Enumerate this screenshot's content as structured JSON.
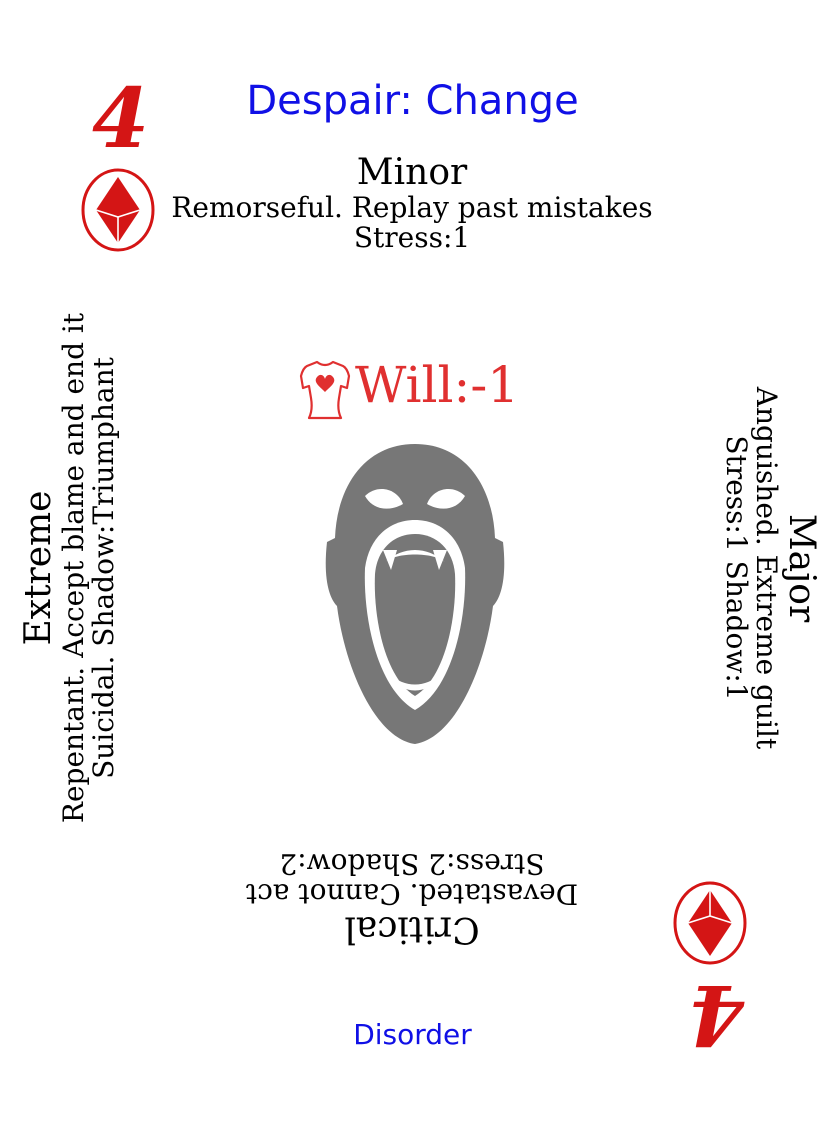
{
  "card": {
    "title": "Despair: Change",
    "rank": "4",
    "suit": "diamond",
    "category": "Disorder",
    "will": {
      "text": "Will:-1",
      "icon": "torso-heart-icon"
    },
    "levels": {
      "minor": {
        "severity": "Minor",
        "description": "Remorseful. Replay past mistakes",
        "stats": "Stress:1"
      },
      "major": {
        "severity": "Major",
        "description": "Anguished. Extreme guilt",
        "stats": "Stress:1 Shadow:1"
      },
      "critical": {
        "severity": "Critical",
        "description": "Devastated. Cannot act",
        "stats": "Stress:2 Shadow:2"
      },
      "extreme": {
        "severity": "Extreme",
        "description": "Repentant. Accept blame and end it",
        "stats": "Suicidal. Shadow:Triumphant"
      }
    },
    "illustration": "screaming-face-icon",
    "colors": {
      "rank": "#d41515",
      "title": "#1010e6",
      "will": "#e03030",
      "face": "#777777"
    }
  }
}
